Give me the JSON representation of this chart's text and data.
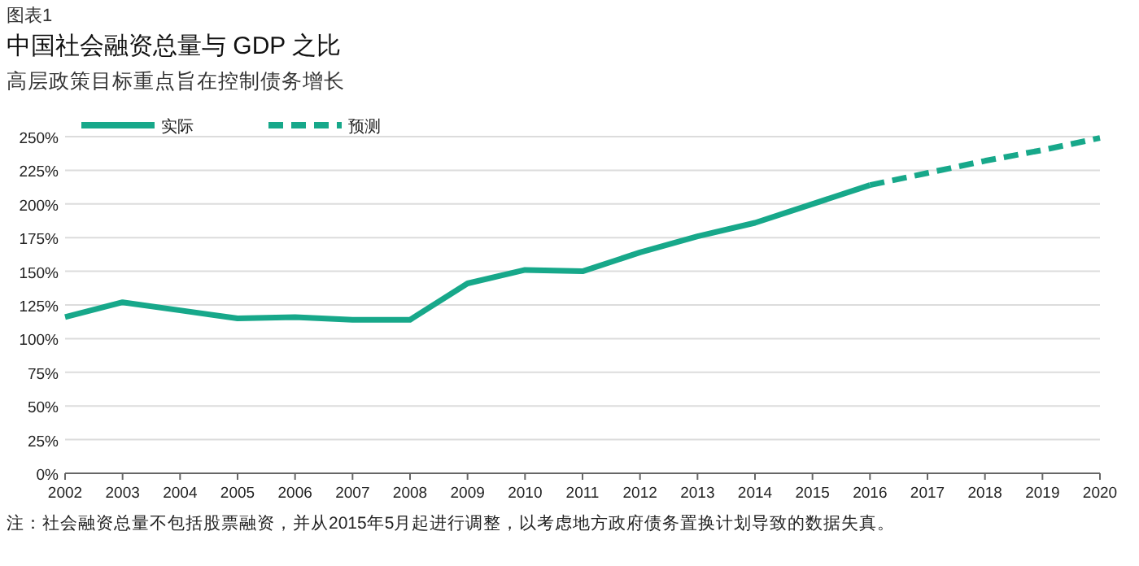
{
  "chart_data": {
    "type": "line",
    "title": "中国社会融资总量与 GDP 之比",
    "subtitle": "高层政策目标重点旨在控制债务增长",
    "annotations": [
      "图表1",
      "注：社会融资总量不包括股票融资，并从2015年5月起进行调整，以考虑地方政府债务置换计划导致的数据失真。"
    ],
    "series": [
      {
        "name": "实际",
        "color": "#17a88a",
        "line_style": "solid",
        "x": [
          2002,
          2003,
          2004,
          2005,
          2006,
          2007,
          2008,
          2009,
          2010,
          2011,
          2012,
          2013,
          2014,
          2015,
          2016
        ],
        "values": [
          116,
          127,
          121,
          115,
          116,
          114,
          114,
          141,
          151,
          150,
          164,
          176,
          186,
          200,
          214
        ]
      },
      {
        "name": "预测",
        "color": "#17a88a",
        "line_style": "dashed",
        "x": [
          2016,
          2017,
          2018,
          2019,
          2020
        ],
        "values": [
          214,
          223,
          232,
          240,
          249
        ]
      }
    ],
    "xlim": [
      2002,
      2020
    ],
    "xticks": [
      2002,
      2003,
      2004,
      2005,
      2006,
      2007,
      2008,
      2009,
      2010,
      2011,
      2012,
      2013,
      2014,
      2015,
      2016,
      2017,
      2018,
      2019,
      2020
    ],
    "ylim": [
      0,
      250
    ],
    "yticks": [
      {
        "value": 0,
        "label": "0%"
      },
      {
        "value": 25,
        "label": "25%"
      },
      {
        "value": 50,
        "label": "50%"
      },
      {
        "value": 75,
        "label": "75%"
      },
      {
        "value": 100,
        "label": "100%"
      },
      {
        "value": 125,
        "label": "125%"
      },
      {
        "value": 150,
        "label": "150%"
      },
      {
        "value": 175,
        "label": "175%"
      },
      {
        "value": 200,
        "label": "200%"
      },
      {
        "value": 225,
        "label": "225%"
      },
      {
        "value": 250,
        "label": "250%"
      }
    ],
    "grid": "y",
    "legend": "top left",
    "marker": "none"
  }
}
